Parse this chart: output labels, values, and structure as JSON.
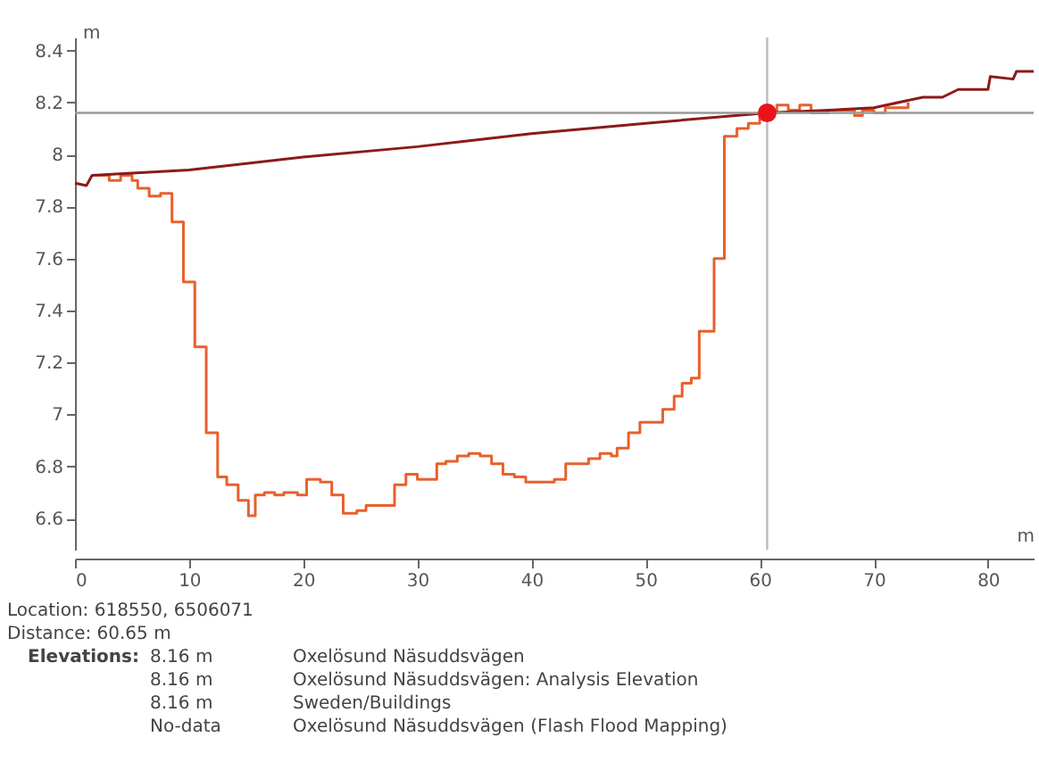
{
  "chart_data": {
    "type": "step",
    "xlabel": "m",
    "ylabel": "m",
    "xlim": [
      0,
      84
    ],
    "ylim": [
      6.48,
      8.45
    ],
    "xticks": [
      0,
      10,
      20,
      30,
      40,
      50,
      60,
      70,
      80
    ],
    "yticks": [
      6.6,
      6.8,
      7,
      7.2,
      7.4,
      7.6,
      7.8,
      8,
      8.2,
      8.4
    ],
    "grid": false,
    "legend": false,
    "line_style": "solid",
    "series": [
      {
        "color": "#e8602c",
        "x": [
          1.5,
          3,
          4,
          5,
          5.5,
          6.5,
          7.5,
          8.5,
          9.5,
          10.5,
          11.5,
          12.5,
          13.3,
          14.3,
          15.2,
          15.8,
          16.6,
          17.5,
          18.3,
          19.5,
          20.3,
          21.5,
          22.5,
          23.5,
          24.7,
          25.5,
          27,
          28,
          29,
          30,
          31,
          31.7,
          32.5,
          33.5,
          34.5,
          35.5,
          36.5,
          37.5,
          38.5,
          39.5,
          41,
          42,
          43,
          45,
          46,
          47,
          47.5,
          48.5,
          49.5,
          50.5,
          51.5,
          52.5,
          53.2,
          54,
          54.7,
          56,
          56.9,
          58,
          59,
          60,
          60.65,
          61.5,
          62.5,
          63.5,
          64.5,
          66,
          68,
          68.3,
          69,
          70,
          71,
          73
        ],
        "values": [
          7.92,
          7.9,
          7.92,
          7.9,
          7.87,
          7.84,
          7.85,
          7.74,
          7.51,
          7.26,
          6.93,
          6.76,
          6.73,
          6.67,
          6.61,
          6.69,
          6.7,
          6.69,
          6.7,
          6.69,
          6.75,
          6.74,
          6.69,
          6.62,
          6.63,
          6.65,
          6.65,
          6.73,
          6.77,
          6.75,
          6.75,
          6.81,
          6.82,
          6.84,
          6.85,
          6.84,
          6.81,
          6.77,
          6.76,
          6.74,
          6.74,
          6.75,
          6.81,
          6.83,
          6.85,
          6.84,
          6.87,
          6.93,
          6.97,
          6.97,
          7.02,
          7.07,
          7.12,
          7.14,
          7.32,
          7.6,
          8.07,
          8.1,
          8.12,
          8.15,
          8.16,
          8.19,
          8.17,
          8.19,
          8.16,
          8.17,
          8.17,
          8.15,
          8.17,
          8.16,
          8.18,
          8.2
        ]
      },
      {
        "type": "line",
        "color": "#8b1a1a",
        "x": [
          0,
          1,
          1.5,
          10,
          20,
          30,
          40,
          50,
          60.65,
          66,
          70,
          74.3,
          76,
          77.4,
          80,
          80.2,
          82.2,
          82.5,
          84
        ],
        "values": [
          7.89,
          7.88,
          7.92,
          7.94,
          7.99,
          8.03,
          8.08,
          8.12,
          8.16,
          8.17,
          8.18,
          8.22,
          8.22,
          8.25,
          8.25,
          8.3,
          8.29,
          8.32,
          8.32
        ]
      },
      {
        "type": "scatter",
        "color": "#e8141c",
        "marker": "circle",
        "x": [
          60.65
        ],
        "values": [
          8.16
        ]
      }
    ],
    "ref_lines": [
      {
        "axis": "x",
        "value": 60.65,
        "color": "#bbbbbb"
      },
      {
        "axis": "y",
        "value": 8.16,
        "color": "#999999"
      }
    ],
    "annotations": [
      "Location: 618550, 6506071",
      "Distance: 60.65 m",
      "Elevations:",
      "8.16 m",
      "Oxelösund Näsuddsvägen",
      "8.16 m",
      "Oxelösund Näsuddsvägen: Analysis Elevation",
      "8.16 m",
      "Sweden/Buildings",
      "No-data",
      "Oxelösund Näsuddsvägen (Flash Flood Mapping)"
    ]
  }
}
